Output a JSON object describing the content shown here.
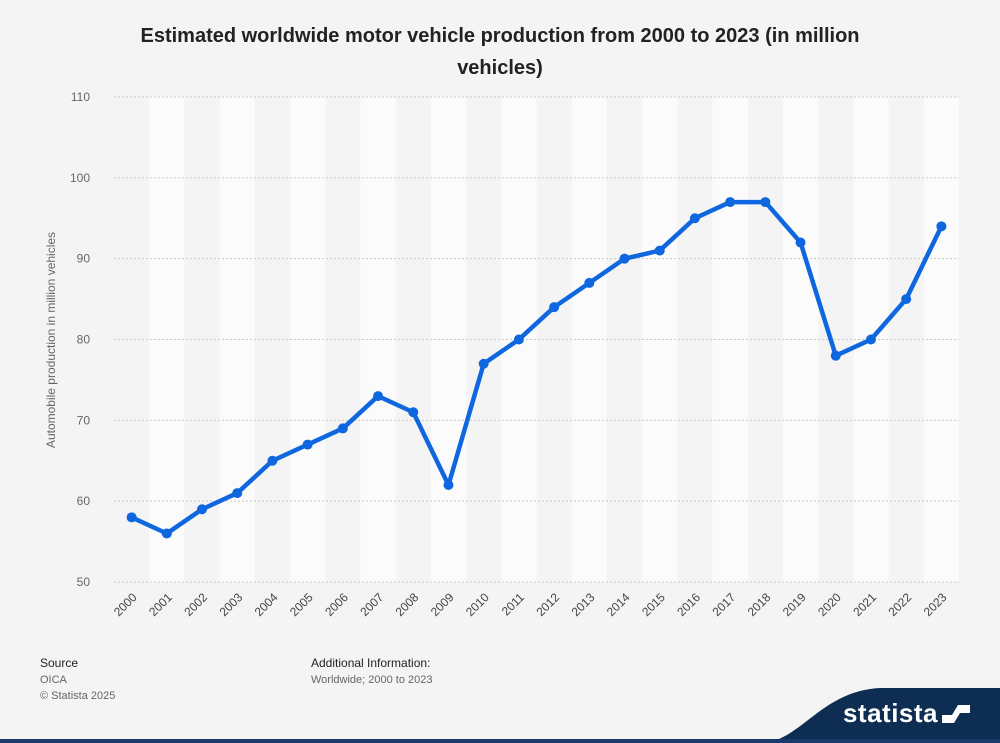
{
  "chart_data": {
    "type": "line",
    "title": "Estimated worldwide motor vehicle production from 2000 to 2023 (in million vehicles)",
    "xlabel": "",
    "ylabel": "Automobile production in million vehicles",
    "categories": [
      "2000",
      "2001",
      "2002",
      "2003",
      "2004",
      "2005",
      "2006",
      "2007",
      "2008",
      "2009",
      "2010",
      "2011",
      "2012",
      "2013",
      "2014",
      "2015",
      "2016",
      "2017",
      "2018",
      "2019",
      "2020",
      "2021",
      "2022",
      "2023"
    ],
    "series": [
      {
        "name": "",
        "values": [
          58,
          56,
          59,
          61,
          65,
          67,
          69,
          73,
          71,
          62,
          77,
          80,
          84,
          87,
          90,
          91,
          95,
          97,
          97,
          92,
          78,
          80,
          85,
          94
        ]
      }
    ],
    "ylim": [
      50,
      110
    ],
    "yticks": [
      50,
      60,
      70,
      80,
      90,
      100,
      110
    ],
    "grid": true,
    "legend": "none",
    "line_color": "#0f67e0",
    "band_color": "#fbfbfb"
  },
  "footer": {
    "source_label": "Source",
    "source_value": "OICA",
    "copyright": "© Statista 2025",
    "additional_label": "Additional Information:",
    "additional_value": "Worldwide; 2000 to 2023"
  },
  "brand": {
    "name": "statista",
    "color": "#0d2d52"
  }
}
